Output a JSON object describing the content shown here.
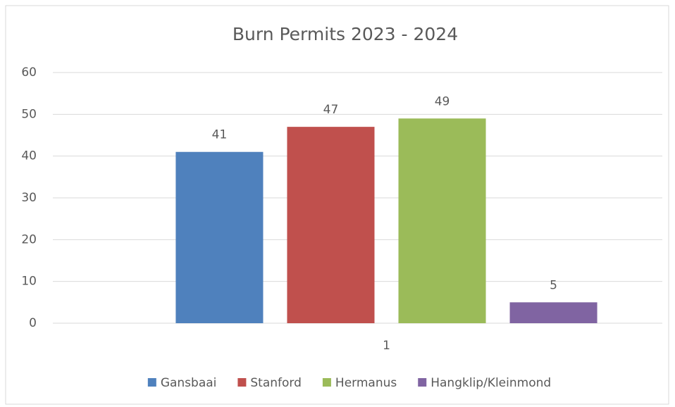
{
  "chart_data": {
    "type": "bar",
    "title": "Burn Permits 2023 - 2024",
    "categories": [
      "1"
    ],
    "series": [
      {
        "name": "Gansbaai",
        "color": "#4f81bd",
        "values": [
          41
        ]
      },
      {
        "name": "Stanford",
        "color": "#c0504d",
        "values": [
          47
        ]
      },
      {
        "name": "Hermanus",
        "color": "#9bbb59",
        "values": [
          49
        ]
      },
      {
        "name": "Hangklip/Kleinmond",
        "color": "#8064a2",
        "values": [
          5
        ]
      }
    ],
    "ylim": [
      0,
      60
    ],
    "yticks": [
      0,
      10,
      20,
      30,
      40,
      50,
      60
    ],
    "grid": true,
    "legend": "bottom"
  }
}
